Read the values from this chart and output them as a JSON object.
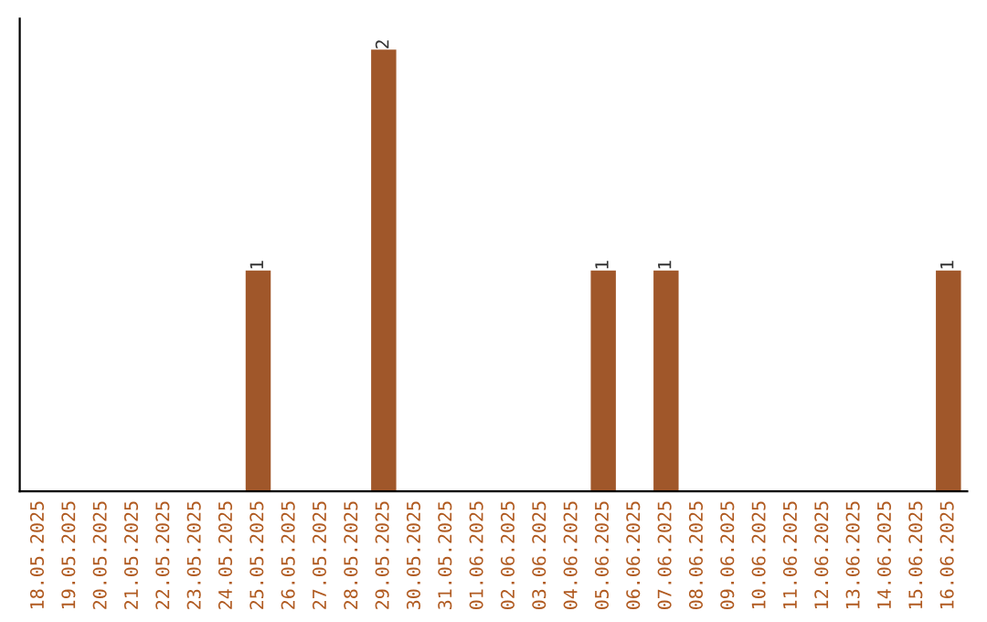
{
  "chart_data": {
    "type": "bar",
    "tick_labels": "x",
    "grid": false,
    "legend": false,
    "categories": [
      "18.05.2025",
      "19.05.2025",
      "20.05.2025",
      "21.05.2025",
      "22.05.2025",
      "23.05.2025",
      "24.05.2025",
      "25.05.2025",
      "26.05.2025",
      "27.05.2025",
      "28.05.2025",
      "29.05.2025",
      "30.05.2025",
      "31.05.2025",
      "01.06.2025",
      "02.06.2025",
      "03.06.2025",
      "04.06.2025",
      "05.06.2025",
      "06.06.2025",
      "07.06.2025",
      "08.06.2025",
      "09.06.2025",
      "10.06.2025",
      "11.06.2025",
      "12.06.2025",
      "13.06.2025",
      "14.06.2025",
      "15.06.2025",
      "16.06.2025"
    ],
    "values": [
      0,
      0,
      0,
      0,
      0,
      0,
      0,
      1,
      0,
      0,
      0,
      2,
      0,
      0,
      0,
      0,
      0,
      0,
      1,
      0,
      1,
      0,
      0,
      0,
      0,
      0,
      0,
      0,
      0,
      1
    ],
    "value_labels": [
      null,
      null,
      null,
      null,
      null,
      null,
      null,
      "1",
      null,
      null,
      null,
      "2",
      null,
      null,
      null,
      null,
      null,
      null,
      "1",
      null,
      "1",
      null,
      null,
      null,
      null,
      null,
      null,
      null,
      null,
      "1"
    ],
    "color": "#a0572a"
  }
}
